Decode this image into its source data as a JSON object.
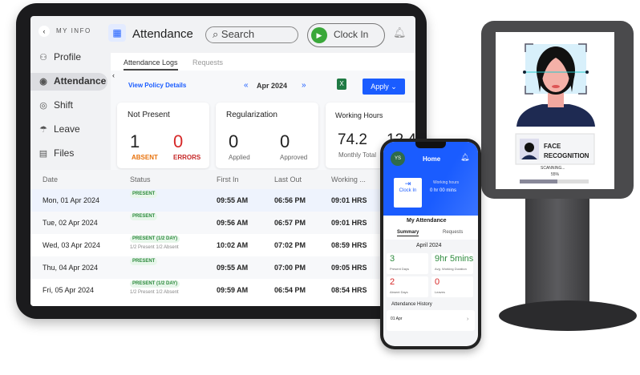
{
  "tablet": {
    "sidebar": {
      "back_label": "MY INFO",
      "items": [
        {
          "label": "Profile",
          "icon": "user-icon"
        },
        {
          "label": "Attendance",
          "icon": "fingerprint-icon",
          "active": true
        },
        {
          "label": "Shift",
          "icon": "shift-icon"
        },
        {
          "label": "Leave",
          "icon": "umbrella-icon"
        },
        {
          "label": "Files",
          "icon": "file-icon"
        }
      ]
    },
    "header": {
      "title": "Attendance",
      "search_placeholder": "Search",
      "clock_in": "Clock In"
    },
    "tabs": [
      "Attendance Logs",
      "Requests"
    ],
    "policy_link": "View Policy Details",
    "month": "Apr 2024",
    "apply": "Apply",
    "cards": {
      "not_present": {
        "title": "Not Present",
        "absent": "1",
        "absent_label": "ABSENT",
        "errors": "0",
        "errors_label": "ERRORS"
      },
      "regularization": {
        "title": "Regularization",
        "applied": "0",
        "applied_label": "Applied",
        "approved": "0",
        "approved_label": "Approved"
      },
      "working_hours": {
        "title": "Working Hours",
        "monthly": "74.2",
        "monthly_label": "Monthly Total",
        "second": "12.4"
      }
    },
    "table": {
      "headers": [
        "Date",
        "Status",
        "First In",
        "Last Out",
        "Working ..."
      ],
      "rows": [
        {
          "date": "Mon, 01 Apr 2024",
          "status": "PRESENT",
          "note": "",
          "in": "09:55 AM",
          "out": "06:56 PM",
          "hrs": "09:01 HRS"
        },
        {
          "date": "Tue, 02 Apr 2024",
          "status": "PRESENT",
          "note": "",
          "in": "09:56 AM",
          "out": "06:57 PM",
          "hrs": "09:01 HRS"
        },
        {
          "date": "Wed, 03 Apr 2024",
          "status": "PRESENT (1/2 DAY)",
          "note": "1/2 Present 1/2 Absent",
          "in": "10:02 AM",
          "out": "07:02 PM",
          "hrs": "08:59 HRS"
        },
        {
          "date": "Thu, 04 Apr 2024",
          "status": "PRESENT",
          "note": "",
          "in": "09:55 AM",
          "out": "07:00 PM",
          "hrs": "09:05 HRS"
        },
        {
          "date": "Fri, 05 Apr 2024",
          "status": "PRESENT (1/2 DAY)",
          "note": "1/2 Present 1/2 Absent",
          "in": "09:59 AM",
          "out": "06:54 PM",
          "hrs": "08:54 HRS"
        }
      ]
    }
  },
  "phone": {
    "avatar": "YS",
    "title": "Home",
    "clock_in": "Clock In",
    "working_label": "Working hours",
    "working_value": "0 hr 00 mins",
    "section": "My Attendance",
    "tabs": [
      "Summary",
      "Requests"
    ],
    "month": "April 2024",
    "stats": [
      {
        "value": "3",
        "label": "Present Days",
        "color": "#2e8b3e"
      },
      {
        "value": "9hr 5mins",
        "label": "Avg. Working Duration",
        "color": "#2e8b3e"
      },
      {
        "value": "2",
        "label": "Absent Days",
        "color": "#d62828"
      },
      {
        "value": "0",
        "label": "Leaves",
        "color": "#d62828"
      }
    ],
    "history_title": "Attendance History",
    "history_day": "01 Apr"
  },
  "kiosk": {
    "label_line1": "FACE",
    "label_line2": "RECOGNITION",
    "scanning": "SCANNING...",
    "progress_text": "55%",
    "progress": 55
  },
  "colors": {
    "accent": "#1a5cff",
    "present": "#2e8b3e",
    "error": "#d62828",
    "absent": "#e8720c",
    "clock_green": "#3aa83a"
  }
}
